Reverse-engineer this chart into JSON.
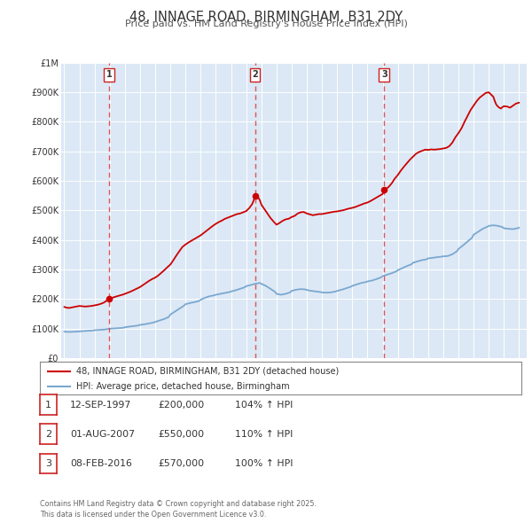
{
  "title": "48, INNAGE ROAD, BIRMINGHAM, B31 2DY",
  "subtitle": "Price paid vs. HM Land Registry's House Price Index (HPI)",
  "background_color": "#ffffff",
  "plot_bg_color": "#dce8f5",
  "grid_color": "#ffffff",
  "title_color": "#333333",
  "subtitle_color": "#555555",
  "red_line_color": "#cc0000",
  "blue_line_color": "#7aa8d0",
  "legend_label_red": "48, INNAGE ROAD, BIRMINGHAM, B31 2DY (detached house)",
  "legend_label_blue": "HPI: Average price, detached house, Birmingham",
  "footer_text": "Contains HM Land Registry data © Crown copyright and database right 2025.\nThis data is licensed under the Open Government Licence v3.0.",
  "transaction_markers": [
    {
      "num": 1,
      "date_label": "12-SEP-1997",
      "year": 1997.95,
      "price": 200000,
      "price_label": "£200,000",
      "hpi_pct": "104% ↑ HPI"
    },
    {
      "num": 2,
      "date_label": "01-AUG-2007",
      "year": 2007.58,
      "price": 550000,
      "price_label": "£550,000",
      "hpi_pct": "110% ↑ HPI"
    },
    {
      "num": 3,
      "date_label": "08-FEB-2016",
      "year": 2016.1,
      "price": 570000,
      "price_label": "£570,000",
      "hpi_pct": "100% ↑ HPI"
    }
  ],
  "ylim": [
    0,
    1000000
  ],
  "xlim_start": 1994.8,
  "xlim_end": 2025.5,
  "yticks": [
    0,
    100000,
    200000,
    300000,
    400000,
    500000,
    600000,
    700000,
    800000,
    900000,
    1000000
  ],
  "ytick_labels": [
    "£0",
    "£100K",
    "£200K",
    "£300K",
    "£400K",
    "£500K",
    "£600K",
    "£700K",
    "£800K",
    "£900K",
    "£1M"
  ],
  "xticks": [
    1995,
    1996,
    1997,
    1998,
    1999,
    2000,
    2001,
    2002,
    2003,
    2004,
    2005,
    2006,
    2007,
    2008,
    2009,
    2010,
    2011,
    2012,
    2013,
    2014,
    2015,
    2016,
    2017,
    2018,
    2019,
    2020,
    2021,
    2022,
    2023,
    2024,
    2025
  ]
}
